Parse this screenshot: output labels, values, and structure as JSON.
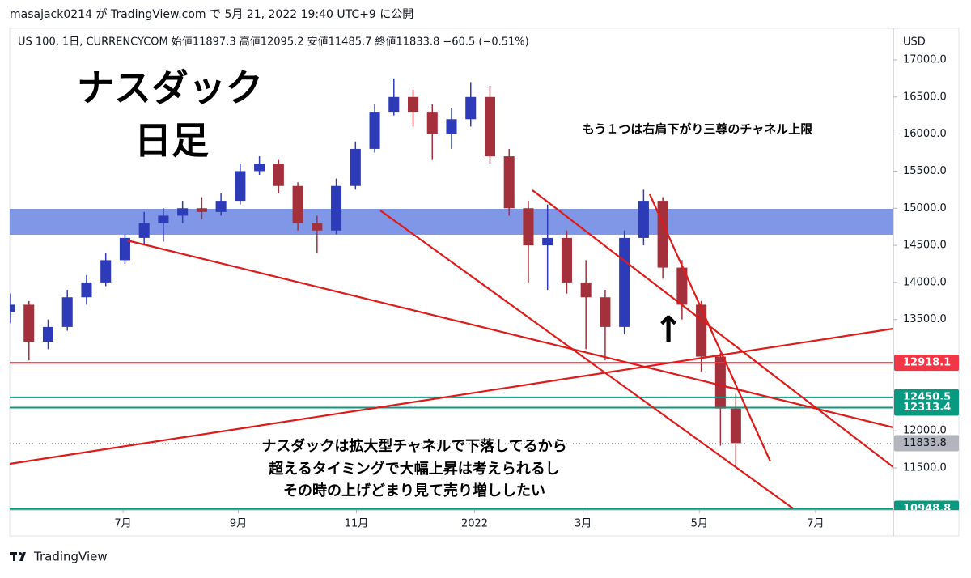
{
  "chart_data": {
    "type": "candlestick",
    "header": "masajack0214 が TradingView.com で 5月 21, 2022 19:40 UTC+9 に公開",
    "legend_text": "US 100, 1日, CURRENCYCOM  始値11897.3  高値12095.2  安値11485.7  終値11833.8  −60.5 (−0.51%)",
    "title_lines": [
      "ナスダック",
      "日足"
    ],
    "annotation_top": "もう１つは右肩下がり三尊のチャネル上限",
    "annotation_bottom": [
      "ナスダックは拡大型チャネルで下落してるから",
      "超えるタイミングで大幅上昇は考えられるし",
      "その時の上げどまり見て売り増ししたい"
    ],
    "arrow": "↑",
    "currency": "USD",
    "footer": "TradingView",
    "up_color": "#2e3bb8",
    "down_color": "#a3303a",
    "x": [
      0,
      2,
      4,
      6,
      8,
      10,
      12,
      14,
      16,
      18,
      20,
      22,
      24,
      26,
      28,
      30,
      32,
      34,
      36,
      38,
      40,
      42,
      44,
      46,
      48,
      50,
      52,
      54,
      56,
      58,
      60,
      62,
      64,
      66,
      68,
      70,
      72,
      74,
      75.6
    ],
    "open": [
      13600,
      13700,
      13200,
      13400,
      13800,
      14000,
      14300,
      14600,
      14800,
      14900,
      15000,
      14950,
      15100,
      15500,
      15600,
      15300,
      14800,
      14700,
      15300,
      15800,
      16300,
      16500,
      16300,
      16000,
      16200,
      16500,
      15700,
      15000,
      14500,
      14600,
      14000,
      13800,
      13400,
      14600,
      15100,
      14200,
      13700,
      13000,
      12300
    ],
    "high": [
      13850,
      13750,
      13500,
      13900,
      14100,
      14400,
      14650,
      14950,
      15000,
      15100,
      15150,
      15200,
      15600,
      15700,
      15650,
      15350,
      14900,
      15400,
      15900,
      16400,
      16750,
      16600,
      16400,
      16350,
      16700,
      16650,
      15800,
      15100,
      15050,
      14700,
      14300,
      13900,
      14700,
      15250,
      15150,
      14300,
      13750,
      13050,
      12500
    ],
    "low": [
      13450,
      12950,
      13100,
      13350,
      13700,
      13950,
      14250,
      14500,
      14550,
      14800,
      14850,
      14900,
      15050,
      15450,
      15200,
      14700,
      14400,
      14650,
      15250,
      15750,
      16250,
      16100,
      15650,
      15800,
      16100,
      15600,
      14900,
      14000,
      13900,
      13850,
      13100,
      12950,
      13300,
      14500,
      14050,
      13500,
      12800,
      11800,
      11500
    ],
    "close": [
      13700,
      13200,
      13400,
      13800,
      14000,
      14300,
      14600,
      14800,
      14900,
      15000,
      14950,
      15100,
      15500,
      15600,
      15300,
      14800,
      14700,
      15300,
      15800,
      16300,
      16500,
      16300,
      16000,
      16200,
      16500,
      15700,
      15000,
      14500,
      14600,
      14000,
      13800,
      13400,
      14600,
      15100,
      14200,
      13700,
      13000,
      12300,
      11833.8
    ],
    "xlim": [
      0,
      92
    ],
    "xticks": [
      {
        "value": 11.8,
        "label": "7月"
      },
      {
        "value": 23.8,
        "label": "9月"
      },
      {
        "value": 36.1,
        "label": "11月"
      },
      {
        "value": 48.4,
        "label": "2022"
      },
      {
        "value": 59.7,
        "label": "3月"
      },
      {
        "value": 71.8,
        "label": "5月"
      },
      {
        "value": 83.9,
        "label": "7月"
      }
    ],
    "ylim": [
      10933,
      17425
    ],
    "yticks": [
      {
        "value": 11500,
        "label": "11500.0"
      },
      {
        "value": 12000,
        "label": "12000.0"
      },
      {
        "value": 13500,
        "label": "13500.0"
      },
      {
        "value": 14000,
        "label": "14000.0"
      },
      {
        "value": 14500,
        "label": "14500.0"
      },
      {
        "value": 15000,
        "label": "15000.0"
      },
      {
        "value": 15500,
        "label": "15500.0"
      },
      {
        "value": 16000,
        "label": "16000.0"
      },
      {
        "value": 16500,
        "label": "16500.0"
      },
      {
        "value": 17000,
        "label": "17000.0"
      }
    ],
    "grid": false,
    "zone": {
      "low": 14643,
      "high": 14992,
      "color": "#8096e6"
    },
    "levels": [
      {
        "value": 12918.1,
        "color": "#f23645"
      },
      {
        "value": 12450.5,
        "color": "#089981"
      },
      {
        "value": 12313.4,
        "color": "#089981"
      },
      {
        "value": 10948.8,
        "color": "#089981"
      }
    ],
    "last_price_color": "#b2b5be"
  }
}
